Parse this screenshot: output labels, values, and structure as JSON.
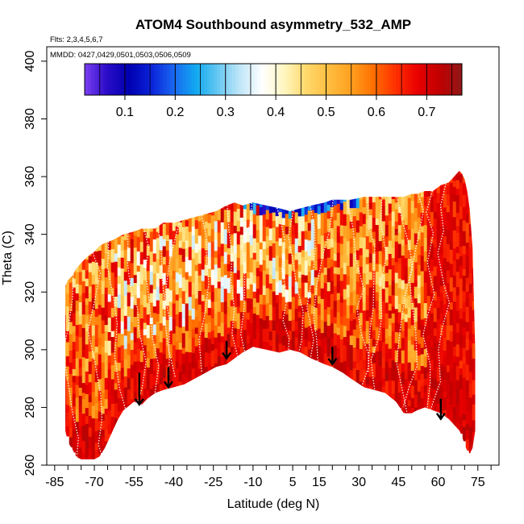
{
  "chart_data": {
    "type": "heatmap",
    "title": "ATOM4 Southbound asymmetry_532_AMP",
    "flights_label": "Flts: 2,3,4,5,6,7",
    "dates_label": "MMDD: 0427,0429,0501,0503,0506,0509",
    "xlabel": "Latitude (deg N)",
    "ylabel": "Theta (C)",
    "xlim": [
      -88,
      83
    ],
    "ylim": [
      260,
      405
    ],
    "x_ticks": [
      -85,
      -70,
      -55,
      -40,
      -25,
      -10,
      5,
      15,
      30,
      45,
      60,
      75
    ],
    "x_minor_ticks": [
      -80,
      -75,
      -65,
      -60,
      -50,
      -45,
      -35,
      -30,
      -20,
      -15,
      -5,
      0,
      10,
      20,
      25,
      35,
      40,
      50,
      55,
      65,
      70,
      80
    ],
    "y_ticks": [
      260,
      280,
      300,
      320,
      340,
      360,
      380,
      400
    ],
    "colorbar": {
      "range": [
        0.02,
        0.77
      ],
      "ticks": [
        0.1,
        0.2,
        0.3,
        0.4,
        0.5,
        0.6,
        0.7
      ],
      "colors": [
        "#7b3ff2",
        "#2a0cc8",
        "#0000b0",
        "#0a22d8",
        "#1a66f0",
        "#10a8f0",
        "#66c8f2",
        "#c0e6f8",
        "#ffffff",
        "#fff6c0",
        "#ffd86a",
        "#ffbd40",
        "#ffa020",
        "#ff7000",
        "#ff3000",
        "#ea0000",
        "#c00000",
        "#901818"
      ]
    },
    "envelope": {
      "lat": [
        -81,
        -80,
        -78,
        -77,
        -75,
        -73,
        -70,
        -68,
        -66,
        -63,
        -61,
        -59,
        -55,
        -52,
        -50,
        -47,
        -44,
        -40,
        -36,
        -32,
        -28,
        -24,
        -20,
        -17,
        -14,
        -10,
        -5,
        0,
        4,
        8,
        12,
        17,
        20,
        24,
        27,
        32,
        36,
        40,
        44,
        47,
        50,
        52,
        55,
        58,
        61,
        64,
        66,
        67,
        68,
        69,
        70,
        71,
        72,
        73,
        74,
        74
      ],
      "theta_top": [
        322,
        324,
        326,
        328,
        330,
        332,
        334,
        336,
        337,
        338,
        339,
        340,
        341,
        342,
        342,
        342,
        344,
        344,
        345,
        346,
        347,
        348,
        350,
        351,
        350,
        351,
        350,
        349,
        348,
        349,
        350,
        351,
        352,
        352,
        352,
        353,
        353,
        353,
        353,
        353,
        354,
        354,
        355,
        355,
        357,
        358,
        360,
        361,
        362,
        361,
        359,
        355,
        348,
        335,
        300,
        280
      ],
      "theta_bottom": [
        272,
        268,
        265,
        263,
        262,
        262,
        262,
        263,
        266,
        272,
        276,
        279,
        282,
        281,
        283,
        285,
        286,
        287,
        288,
        290,
        292,
        294,
        295,
        297,
        299,
        301,
        300,
        299,
        300,
        299,
        297,
        295,
        294,
        292,
        290,
        287,
        286,
        285,
        282,
        278,
        278,
        279,
        280,
        279,
        278,
        276,
        274,
        273,
        272,
        270,
        267,
        265,
        264,
        266,
        272,
        280
      ]
    },
    "annotations": [
      {
        "lat": -53,
        "theta_start": 292,
        "theta_end": 281,
        "label": "arrow"
      },
      {
        "lat": -42,
        "theta_start": 294,
        "theta_end": 287,
        "label": "arrow"
      },
      {
        "lat": -20,
        "theta_start": 303,
        "theta_end": 297,
        "label": "arrow"
      },
      {
        "lat": 20,
        "theta_start": 301,
        "theta_end": 295,
        "label": "arrow"
      },
      {
        "lat": 61,
        "theta_start": 283,
        "theta_end": 276,
        "label": "arrow"
      }
    ]
  }
}
